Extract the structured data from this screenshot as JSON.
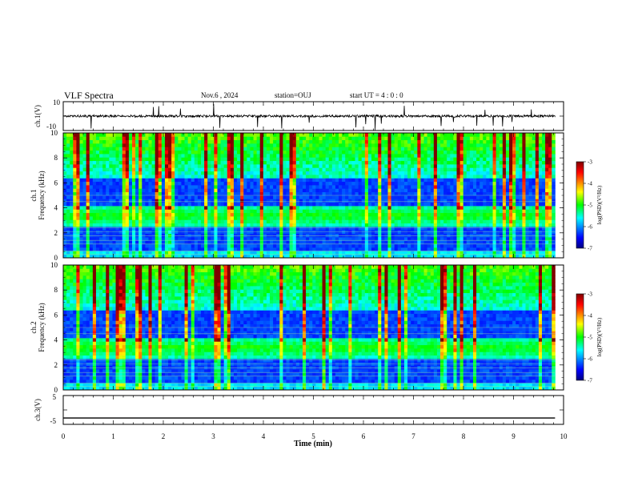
{
  "header": {
    "title": "VLF Spectra",
    "date": "Nov.6 , 2024",
    "station": "station=OUJ",
    "start_ut": "start UT = 4 : 0 : 0"
  },
  "chart_data": [
    {
      "type": "line",
      "panel": "waveform-ch1",
      "ylabel": "ch.1(V)",
      "ylim": [
        -10,
        10
      ],
      "y_ticks": [
        "10",
        "-10"
      ],
      "baseline_value": 0,
      "x_range": [
        0,
        10
      ]
    },
    {
      "type": "heatmap",
      "panel": "spectrogram-ch1",
      "ylabel_line1": "ch.1",
      "ylabel_line2": "Frequency (kHz)",
      "ylim": [
        0,
        10
      ],
      "y_ticks": [
        0,
        2,
        4,
        6,
        8,
        10
      ],
      "x_range": [
        0,
        9.83
      ],
      "noise_band_khz": [
        2.5,
        4.3
      ],
      "colorbar": {
        "label": "log(PSD)(V²/Hz)",
        "range": [
          -7,
          -3
        ],
        "ticks": [
          "-3",
          "-4",
          "-5",
          "-6",
          "-7"
        ]
      }
    },
    {
      "type": "heatmap",
      "panel": "spectrogram-ch2",
      "ylabel_line1": "ch.2",
      "ylabel_line2": "Frequency (kHz)",
      "ylim": [
        0,
        10
      ],
      "y_ticks": [
        0,
        2,
        4,
        6,
        8,
        10
      ],
      "x_range": [
        0,
        9.83
      ],
      "noise_band_khz": [
        2.5,
        4.3
      ],
      "colorbar": {
        "label": "log(PSD)(V²/Hz)",
        "range": [
          -7,
          -3
        ],
        "ticks": [
          "-3",
          "-4",
          "-5",
          "-6",
          "-7"
        ]
      }
    },
    {
      "type": "line",
      "panel": "waveform-ch3",
      "ylabel": "ch.3(V)",
      "ylim": [
        -5,
        5
      ],
      "y_ticks": [
        "5",
        "-5"
      ],
      "baseline_value": -2.8,
      "x_range": [
        0,
        9.83
      ]
    }
  ],
  "x_axis": {
    "label": "Time (min)",
    "ticks": [
      "0",
      "1",
      "2",
      "3",
      "4",
      "5",
      "6",
      "7",
      "8",
      "9",
      "10"
    ],
    "range": [
      0,
      10
    ]
  },
  "colors": {
    "frame": "#000000",
    "background": "#ffffff",
    "colormap": [
      "#00007f",
      "#0000ff",
      "#00ffff",
      "#00ff00",
      "#ffff00",
      "#ff0000",
      "#7f0000"
    ]
  }
}
